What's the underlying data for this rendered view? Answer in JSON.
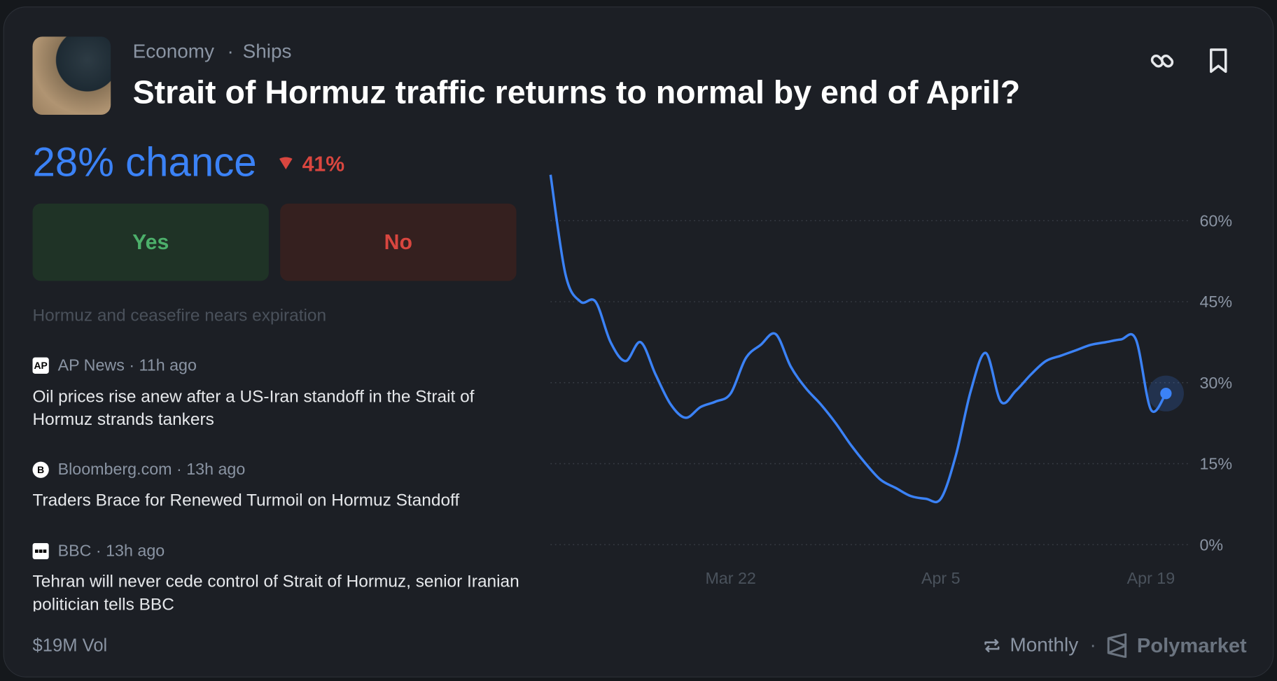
{
  "header": {
    "category": "Economy",
    "subcategory": "Ships",
    "title": "Strait of Hormuz traffic returns to normal by end of April?"
  },
  "probability": {
    "label": "28% chance",
    "change": "41%"
  },
  "buttons": {
    "yes": "Yes",
    "no": "No"
  },
  "news": {
    "faded": "Hormuz and ceasefire nears expiration",
    "items": [
      {
        "logo": "AP",
        "source": "AP News",
        "time": "11h ago",
        "headline": "Oil prices rise anew after a US-Iran standoff in the Strait of Hormuz strands tankers"
      },
      {
        "logo": "B",
        "source": "Bloomberg.com",
        "time": "13h ago",
        "headline": "Traders Brace for Renewed Turmoil on Hormuz Standoff"
      },
      {
        "source": "BBC",
        "time": "13h ago",
        "headline": "Tehran will never cede control of Strait of Hormuz, senior Iranian politician tells BBC"
      }
    ]
  },
  "footer": {
    "volume": "$19M Vol",
    "interval": "Monthly",
    "brand": "Polymarket"
  },
  "chart_data": {
    "type": "line",
    "color": "#3b82f6",
    "grid": true,
    "categories": [
      null,
      null,
      null,
      null,
      null,
      null,
      null,
      null,
      null,
      null,
      null,
      null,
      "Mar 22",
      null,
      null,
      null,
      null,
      null,
      null,
      null,
      null,
      null,
      null,
      null,
      null,
      null,
      "Apr 5",
      null,
      null,
      null,
      null,
      null,
      null,
      null,
      null,
      null,
      null,
      null,
      null,
      null,
      "Apr 19",
      null
    ],
    "values": [
      68.5,
      50,
      45,
      45,
      37.5,
      34,
      37.5,
      31.5,
      26,
      23.5,
      25.5,
      26.5,
      28,
      34.5,
      37,
      39,
      33,
      29,
      26,
      22.5,
      18.5,
      15,
      12,
      10.5,
      9,
      8.5,
      8.5,
      16.5,
      28.5,
      35.5,
      26.5,
      28.5,
      31.5,
      34,
      35,
      36,
      37,
      37.5,
      38,
      38,
      25,
      28
    ],
    "ylim": [
      0,
      70
    ],
    "yticks": [
      {
        "value": 0,
        "label": "0%"
      },
      {
        "value": 15,
        "label": "15%"
      },
      {
        "value": 30,
        "label": "30%"
      },
      {
        "value": 45,
        "label": "45%"
      },
      {
        "value": 60,
        "label": "60%"
      }
    ]
  }
}
